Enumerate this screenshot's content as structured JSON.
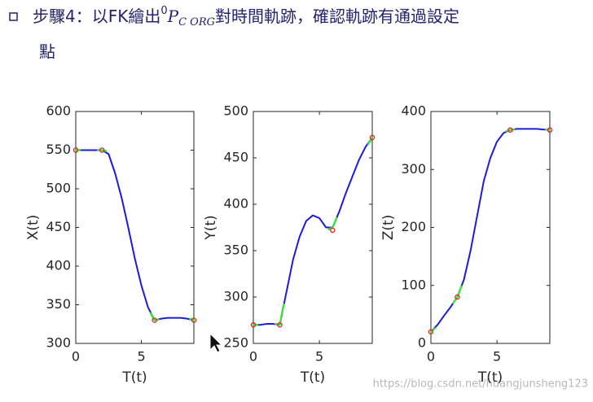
{
  "header": {
    "prefix": "步驟4：以FK繪出",
    "sup": "0",
    "symbol": "P",
    "sub": "C ORG",
    "suffix": "對時間軌跡，確認軌跡有通過設定",
    "line2": "點"
  },
  "watermark": "https://blog.csdn.net/huangjunsheng123",
  "chart_data": [
    {
      "type": "line",
      "xlabel": "T(t)",
      "ylabel": "X(t)",
      "xlim": [
        0,
        9
      ],
      "xticks": [
        0,
        5
      ],
      "ylim": [
        300,
        600
      ],
      "yticks": [
        300,
        350,
        400,
        450,
        500,
        550,
        600
      ],
      "x": [
        0,
        0.5,
        1,
        1.5,
        2,
        2.5,
        3,
        3.5,
        4,
        4.5,
        5,
        5.5,
        6,
        6.5,
        7,
        7.5,
        8,
        8.5,
        9
      ],
      "series": [
        {
          "color": "#1c1cd8",
          "values": [
            550,
            550,
            550,
            550,
            550,
            545,
            520,
            488,
            450,
            410,
            375,
            347,
            330,
            332,
            333,
            333,
            333,
            332,
            330
          ]
        },
        {
          "color": "#3de03d",
          "x": [
            0,
            0.3,
            null,
            1.7,
            2,
            2.3,
            null,
            5.7,
            6,
            6.3,
            null,
            8.7,
            9
          ],
          "values": [
            550,
            550,
            null,
            550,
            550,
            549,
            null,
            339,
            330,
            331,
            null,
            332,
            330
          ]
        },
        {
          "color": "#e02020",
          "mode": "markers",
          "x": [
            0,
            2,
            6,
            9
          ],
          "values": [
            550,
            550,
            330,
            330
          ]
        }
      ]
    },
    {
      "type": "line",
      "xlabel": "T(t)",
      "ylabel": "Y(t)",
      "xlim": [
        0,
        9
      ],
      "xticks": [
        0,
        5
      ],
      "ylim": [
        250,
        500
      ],
      "yticks": [
        250,
        300,
        350,
        400,
        450,
        500
      ],
      "x": [
        0,
        0.5,
        1,
        1.5,
        2,
        2.5,
        3,
        3.5,
        4,
        4.5,
        5,
        5.5,
        6,
        6.5,
        7,
        7.5,
        8,
        8.5,
        9
      ],
      "series": [
        {
          "color": "#1c1cd8",
          "values": [
            270,
            270,
            271,
            271,
            270,
            305,
            340,
            365,
            382,
            388,
            385,
            375,
            375,
            392,
            412,
            430,
            448,
            462,
            472
          ]
        },
        {
          "color": "#3de03d",
          "x": [
            0,
            0.3,
            null,
            1.7,
            2,
            2.3,
            null,
            5.7,
            6,
            6.3,
            null,
            8.7,
            9
          ],
          "values": [
            270,
            270,
            null,
            271,
            270,
            292,
            null,
            373,
            375,
            385,
            null,
            465,
            472
          ]
        },
        {
          "color": "#e02020",
          "mode": "markers",
          "x": [
            0,
            2,
            6,
            9
          ],
          "values": [
            270,
            270,
            372,
            472
          ]
        }
      ]
    },
    {
      "type": "line",
      "xlabel": "T(t)",
      "ylabel": "Z(t)",
      "xlim": [
        0,
        9
      ],
      "xticks": [
        0,
        5
      ],
      "ylim": [
        0,
        400
      ],
      "yticks": [
        0,
        100,
        200,
        300,
        400
      ],
      "x": [
        0,
        0.5,
        1,
        1.5,
        2,
        2.5,
        3,
        3.5,
        4,
        4.5,
        5,
        5.5,
        6,
        6.5,
        7,
        7.5,
        8,
        8.5,
        9
      ],
      "series": [
        {
          "color": "#1c1cd8",
          "values": [
            20,
            32,
            48,
            63,
            80,
            110,
            160,
            220,
            280,
            320,
            348,
            363,
            368,
            370,
            370,
            370,
            370,
            369,
            368
          ]
        },
        {
          "color": "#3de03d",
          "x": [
            0,
            0.3,
            null,
            1.7,
            2,
            2.3,
            null,
            5.7,
            6,
            6.3,
            null,
            8.7,
            9
          ],
          "values": [
            20,
            26,
            null,
            70,
            80,
            98,
            null,
            366,
            368,
            369,
            null,
            369,
            368
          ]
        },
        {
          "color": "#e02020",
          "mode": "markers",
          "x": [
            0,
            2,
            6,
            9
          ],
          "values": [
            20,
            80,
            368,
            368
          ]
        }
      ]
    }
  ]
}
